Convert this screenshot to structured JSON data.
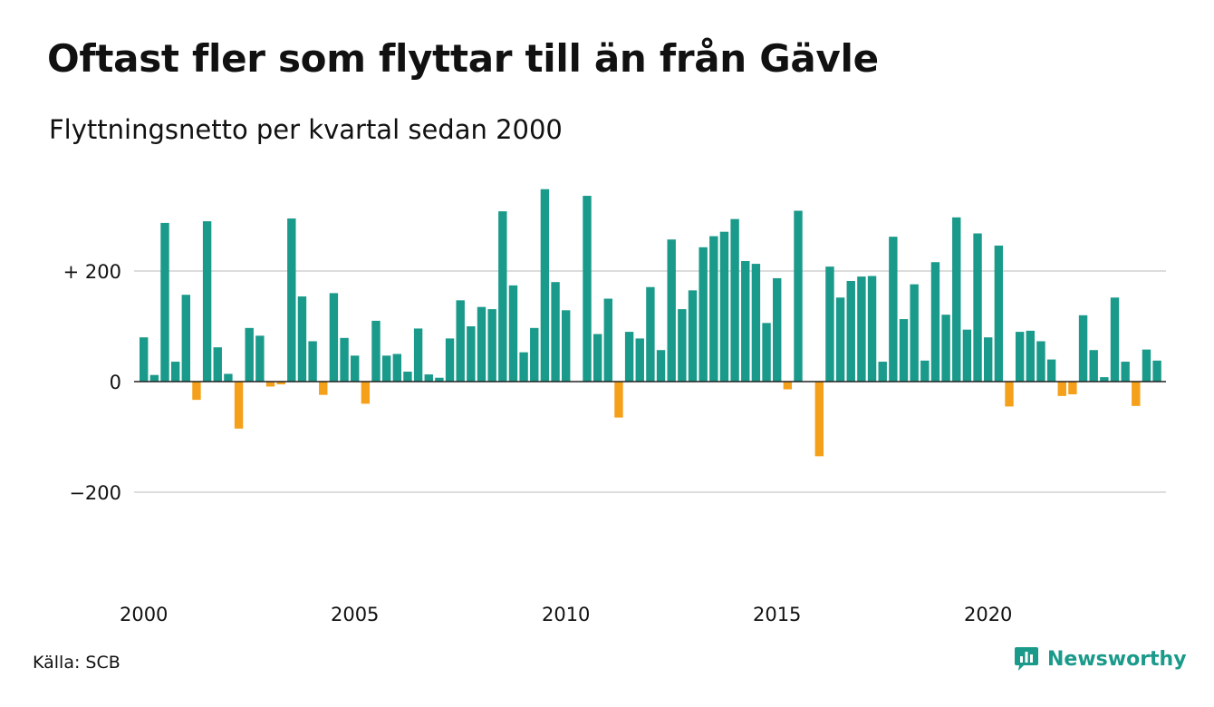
{
  "header": {
    "title": "Oftast fler som flyttar till än från Gävle",
    "subtitle": "Flyttningsnetto per kvartal sedan 2000"
  },
  "footer": {
    "source": "Källa: SCB",
    "brand": "Newsworthy",
    "brand_icon": "newsworthy-logo-icon"
  },
  "colors": {
    "positive": "#1a9a8a",
    "negative": "#f5a01a",
    "grid": "#dddddd",
    "zero_line": "#222222"
  },
  "chart_data": {
    "type": "bar",
    "title": "Oftast fler som flyttar till än från Gävle",
    "subtitle": "Flyttningsnetto per kvartal sedan 2000",
    "xlabel": "",
    "ylabel": "",
    "ylim": [
      -380,
      380
    ],
    "yticks": [
      {
        "value": 200,
        "label": "+ 200"
      },
      {
        "value": 0,
        "label": "0"
      },
      {
        "value": -200,
        "label": "−200"
      }
    ],
    "xticks": [
      {
        "year": 2000,
        "label": "2000"
      },
      {
        "year": 2005,
        "label": "2005"
      },
      {
        "year": 2010,
        "label": "2010"
      },
      {
        "year": 2015,
        "label": "2015"
      },
      {
        "year": 2020,
        "label": "2020"
      }
    ],
    "grid": true,
    "start_year": 2000,
    "values": [
      80,
      12,
      287,
      36,
      157,
      -33,
      290,
      62,
      14,
      -85,
      97,
      83,
      -9,
      -5,
      295,
      154,
      73,
      -24,
      160,
      79,
      47,
      -40,
      110,
      47,
      50,
      18,
      96,
      13,
      7,
      78,
      147,
      100,
      135,
      131,
      308,
      174,
      53,
      97,
      348,
      180,
      129,
      0,
      336,
      86,
      150,
      -65,
      90,
      78,
      171,
      57,
      257,
      131,
      165,
      243,
      263,
      271,
      294,
      218,
      213,
      106,
      187,
      -14,
      309,
      0,
      -135,
      208,
      152,
      182,
      190,
      191,
      36,
      262,
      113,
      176,
      38,
      216,
      121,
      297,
      94,
      268,
      80,
      246,
      -45,
      90,
      92,
      73,
      40,
      -26,
      -23,
      120,
      57,
      8,
      152,
      36,
      -44,
      58,
      38
    ]
  }
}
